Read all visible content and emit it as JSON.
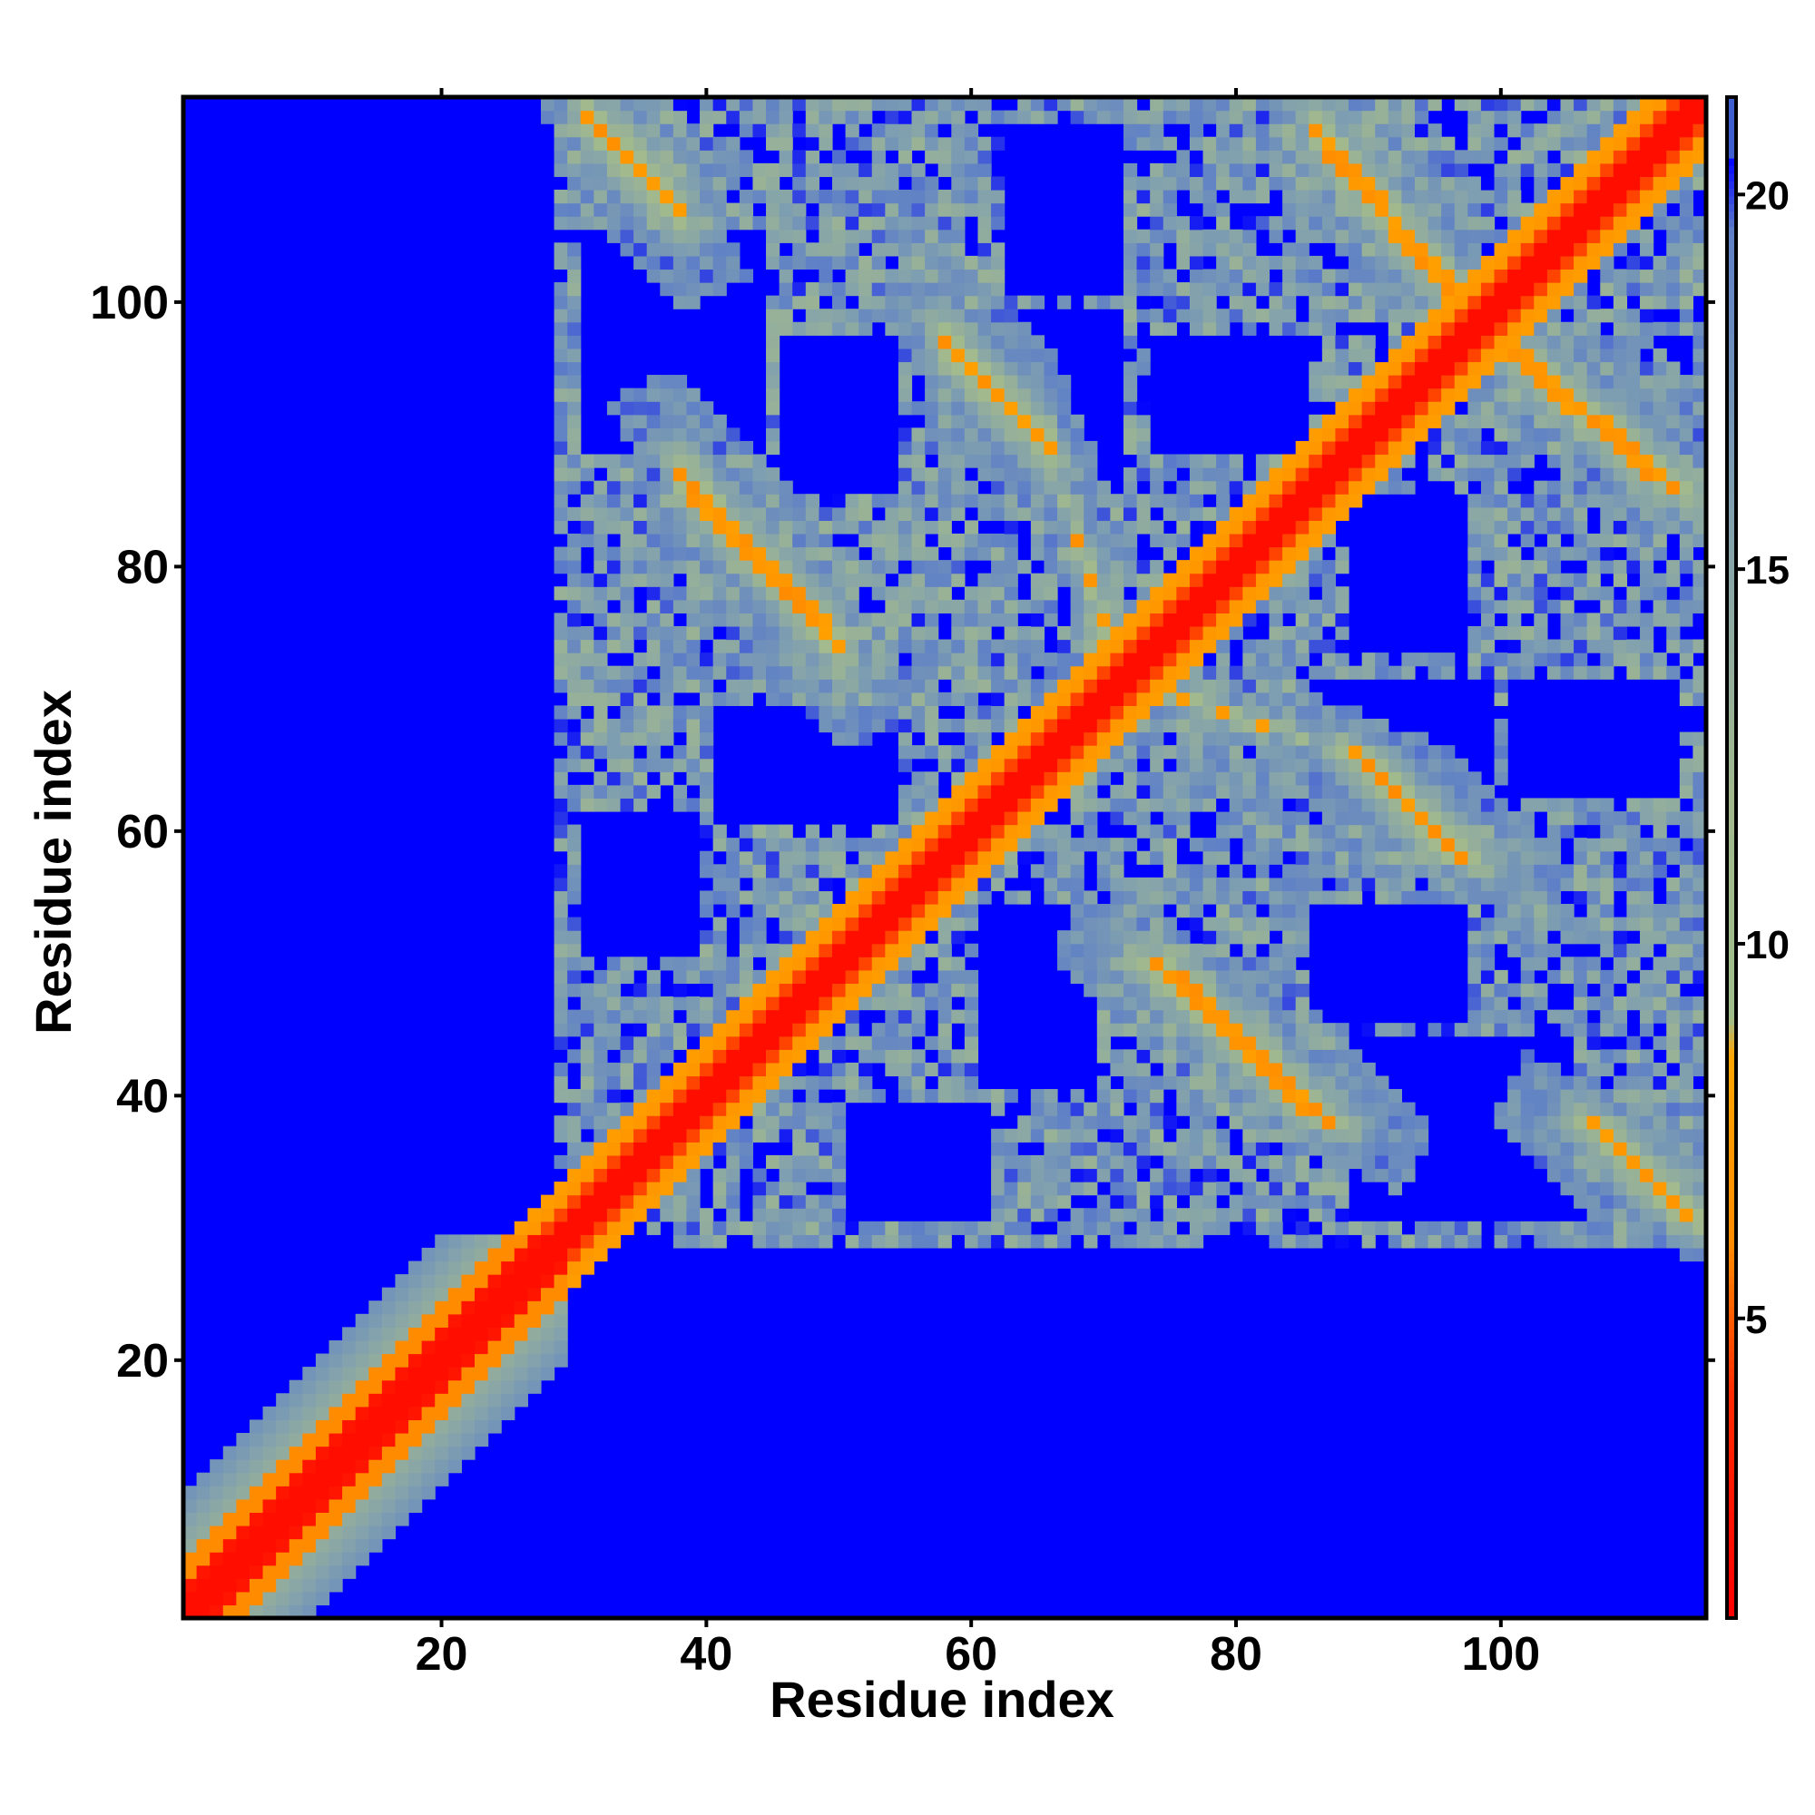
{
  "chart_data": {
    "type": "heatmap",
    "title": "",
    "xlabel": "Residue index",
    "ylabel": "Residue index",
    "n_residues": 115,
    "xlim": [
      1,
      115
    ],
    "ylim": [
      1,
      115
    ],
    "x_ticks": [
      20,
      40,
      60,
      80,
      100
    ],
    "y_ticks": [
      20,
      40,
      60,
      80,
      100
    ],
    "x_tick_labels": [
      "20",
      "40",
      "60",
      "80",
      "100"
    ],
    "y_tick_labels": [
      "20",
      "40",
      "60",
      "80",
      "100"
    ],
    "colorbar": {
      "range": [
        1,
        21.3
      ],
      "ticks": [
        5,
        10,
        15,
        20
      ],
      "tick_labels": [
        "5",
        "10",
        "15",
        "20"
      ],
      "colors": [
        {
          "value": 1,
          "color": "#ff0000"
        },
        {
          "value": 4,
          "color": "#ff2a00"
        },
        {
          "value": 6,
          "color": "#ff8c00"
        },
        {
          "value": 8.5,
          "color": "#ffa500"
        },
        {
          "value": 9.0,
          "color": "#9fbe8c"
        },
        {
          "value": 12,
          "color": "#a2b98d"
        },
        {
          "value": 16,
          "color": "#7f9fb0"
        },
        {
          "value": 19.5,
          "color": "#5f80c6"
        },
        {
          "value": 20.5,
          "color": "#0000ff"
        }
      ]
    },
    "background_value": 21,
    "background_color": "#0000ff",
    "grid": false,
    "structure": {
      "diagonal": "distance ~0-4 along i=j",
      "antiparallel_contacts": [
        {
          "i_range": [
            31,
            38
          ],
          "j_range": [
            107,
            114
          ]
        },
        {
          "i_range": [
            38,
            50
          ],
          "j_range": [
            74,
            87
          ]
        },
        {
          "i_range": [
            58,
            66
          ],
          "j_range": [
            89,
            97
          ]
        },
        {
          "i_range": [
            68,
            71
          ],
          "j_range": [
            73,
            82
          ]
        },
        {
          "i_range": [
            74,
            79
          ],
          "j_range": [
            67,
            72
          ]
        },
        {
          "i_range": [
            86,
            97
          ],
          "j_range": [
            100,
            113
          ]
        },
        {
          "i_range": [
            91,
            97
          ],
          "j_range": [
            59,
            66
          ]
        },
        {
          "i_range": [
            75,
            86
          ],
          "j_range": [
            38,
            50
          ]
        },
        {
          "i_range": [
            100,
            112
          ],
          "j_range": [
            86,
            97
          ]
        },
        {
          "i_range": [
            107,
            114
          ],
          "j_range": [
            31,
            38
          ]
        }
      ]
    }
  }
}
